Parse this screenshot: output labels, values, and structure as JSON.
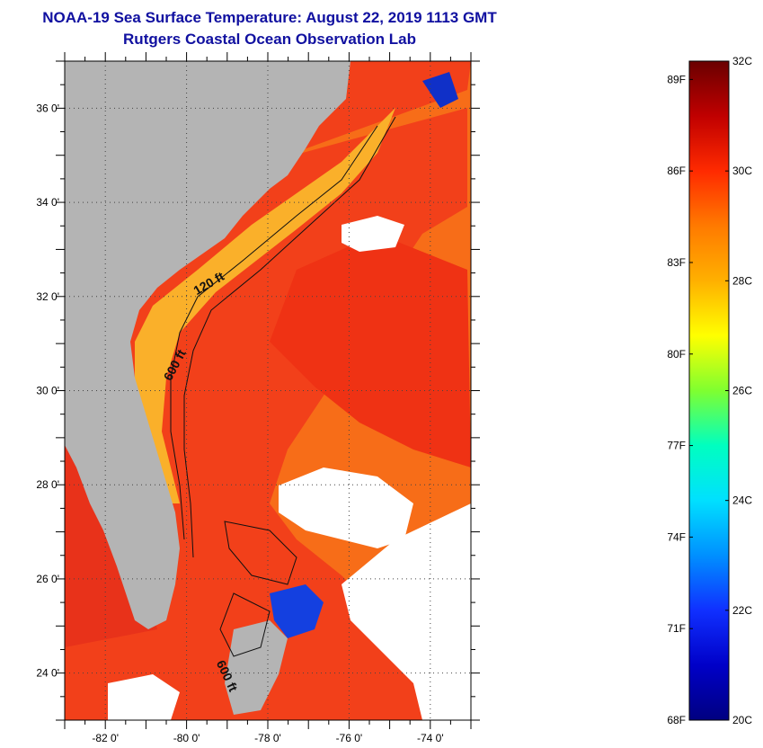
{
  "title": {
    "line1": "NOAA-19 Sea Surface Temperature:  August 22, 2019 1113 GMT",
    "line2": "Rutgers Coastal Ocean Observation Lab"
  },
  "map": {
    "lon_range": [
      -83.0,
      -73.0
    ],
    "lat_range": [
      23.0,
      37.0
    ],
    "lon_labels": [
      {
        "lon": -82,
        "text": "-82 0'"
      },
      {
        "lon": -80,
        "text": "-80 0'"
      },
      {
        "lon": -78,
        "text": "-78 0'"
      },
      {
        "lon": -76,
        "text": "-76 0'"
      },
      {
        "lon": -74,
        "text": "-74 0'"
      }
    ],
    "lat_labels": [
      {
        "lat": 36,
        "text": "36 0'"
      },
      {
        "lat": 34,
        "text": "34 0'"
      },
      {
        "lat": 32,
        "text": "32 0'"
      },
      {
        "lat": 30,
        "text": "30 0'"
      },
      {
        "lat": 28,
        "text": "28 0'"
      },
      {
        "lat": 26,
        "text": "26 0'"
      },
      {
        "lat": 24,
        "text": "24 0'"
      }
    ],
    "contour_labels": [
      {
        "text": "120 ft",
        "lon": -79.4,
        "lat": 32.2,
        "rotate": -30
      },
      {
        "text": "600 ft",
        "lon": -80.2,
        "lat": 30.5,
        "rotate": -62
      },
      {
        "text": "600 ft",
        "lon": -79.1,
        "lat": 23.9,
        "rotate": 65
      }
    ],
    "colors": {
      "land": "#b4b4b4",
      "cloud": "#ffffff",
      "ocean_warm": "#f23a10",
      "ocean_mid": "#f76a14",
      "ocean_shelf": "#f9a21c"
    }
  },
  "colorbar": {
    "min_c": 20,
    "max_c": 32,
    "celsius": [
      {
        "value": 32,
        "text": "32C"
      },
      {
        "value": 30,
        "text": "30C"
      },
      {
        "value": 28,
        "text": "28C"
      },
      {
        "value": 26,
        "text": "26C"
      },
      {
        "value": 24,
        "text": "24C"
      },
      {
        "value": 22,
        "text": "22C"
      },
      {
        "value": 20,
        "text": "20C"
      }
    ],
    "fahrenheit": [
      {
        "value": 89,
        "text": "89F"
      },
      {
        "value": 86,
        "text": "86F"
      },
      {
        "value": 83,
        "text": "83F"
      },
      {
        "value": 80,
        "text": "80F"
      },
      {
        "value": 77,
        "text": "77F"
      },
      {
        "value": 74,
        "text": "74F"
      },
      {
        "value": 71,
        "text": "71F"
      },
      {
        "value": 68,
        "text": "68F"
      }
    ],
    "stops": [
      "#6a0000",
      "#c00000",
      "#ff2a00",
      "#ff7a00",
      "#ffb000",
      "#ffff00",
      "#7fff30",
      "#00ffc0",
      "#00e0ff",
      "#0090ff",
      "#1030ff",
      "#0000c8",
      "#000080"
    ]
  }
}
